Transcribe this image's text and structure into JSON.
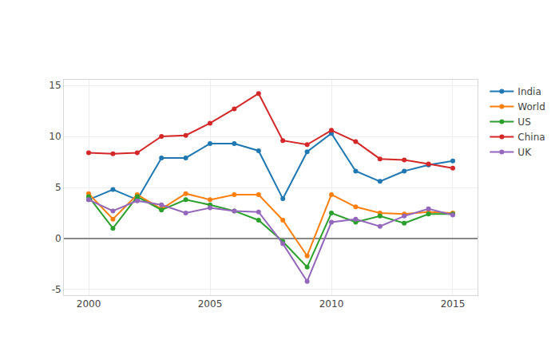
{
  "chart_data": {
    "type": "line",
    "x": [
      2000,
      2001,
      2002,
      2003,
      2004,
      2005,
      2006,
      2007,
      2008,
      2009,
      2010,
      2011,
      2012,
      2013,
      2014,
      2015
    ],
    "series": [
      {
        "name": "India",
        "color": "#1f77b4",
        "values": [
          3.8,
          4.8,
          3.8,
          7.9,
          7.9,
          9.3,
          9.3,
          8.6,
          3.9,
          8.5,
          10.3,
          6.6,
          5.6,
          6.6,
          7.2,
          7.6
        ]
      },
      {
        "name": "World",
        "color": "#ff7f0e",
        "values": [
          4.4,
          1.9,
          4.3,
          2.9,
          4.4,
          3.8,
          4.3,
          4.3,
          1.8,
          -1.7,
          4.3,
          3.1,
          2.5,
          2.4,
          2.6,
          2.5
        ]
      },
      {
        "name": "US",
        "color": "#2ca02c",
        "values": [
          4.1,
          1.0,
          4.1,
          2.8,
          3.8,
          3.3,
          2.7,
          1.8,
          -0.3,
          -2.8,
          2.5,
          1.6,
          2.2,
          1.5,
          2.4,
          2.4
        ]
      },
      {
        "name": "China",
        "color": "#d62728",
        "values": [
          8.4,
          8.3,
          8.4,
          10.0,
          10.1,
          11.3,
          12.7,
          14.2,
          9.6,
          9.2,
          10.6,
          9.5,
          7.8,
          7.7,
          7.3,
          6.9
        ]
      },
      {
        "name": "UK",
        "color": "#9467bd",
        "values": [
          3.8,
          2.7,
          3.7,
          3.3,
          2.5,
          3.0,
          2.7,
          2.6,
          -0.5,
          -4.2,
          1.6,
          1.9,
          1.2,
          2.2,
          2.9,
          2.3
        ]
      }
    ],
    "xlim": [
      1998.98,
      2016.02
    ],
    "xticks": [
      2000,
      2005,
      2010,
      2015
    ],
    "ylim": [
      -5.55,
      15.55
    ],
    "yticks": [
      -5,
      0,
      5,
      10,
      15
    ],
    "grid": true,
    "legend": "top right",
    "marker": "circle"
  }
}
